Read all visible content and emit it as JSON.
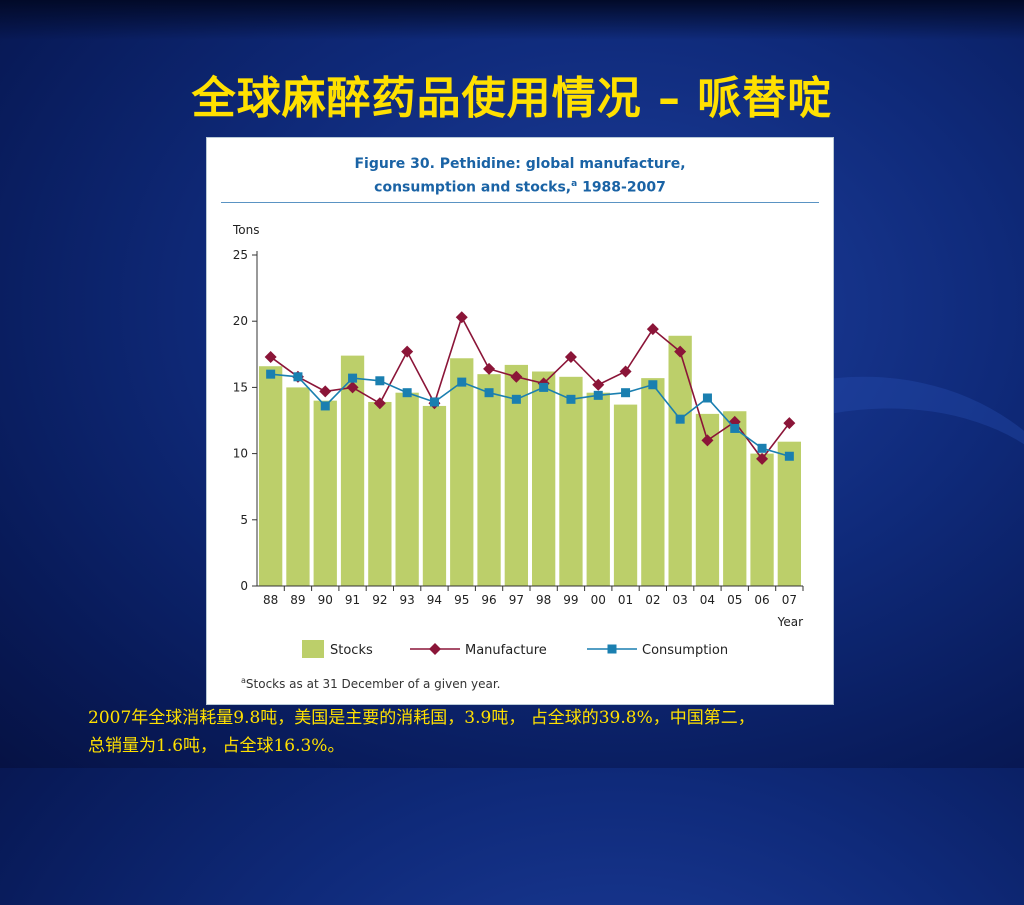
{
  "slide": {
    "title": "全球麻醉药品使用情况 – 哌替啶",
    "caption_line1": "2007年全球消耗量9.8吨，美国是主要的消耗国，3.9吨， 占全球的39.8%，中国第二，",
    "caption_line2": "总销量为1.6吨， 占全球16.3%。"
  },
  "colors": {
    "stocks": "#bccf6a",
    "manufacture": "#8b1538",
    "consumption": "#1a7fb0",
    "title_yellow": "#ffe000"
  },
  "chart_data": {
    "type": "bar",
    "title_line1": "Figure 30.   Pethidine: global manufacture,",
    "title_line2": "consumption and stocks,",
    "title_sup": "a",
    "title_tail": " 1988-2007",
    "ylabel": "Tons",
    "xlabel": "Year",
    "ylim": [
      0,
      25
    ],
    "yticks": [
      "0",
      "5",
      "10",
      "15",
      "20",
      "25"
    ],
    "categories": [
      "88",
      "89",
      "90",
      "91",
      "92",
      "93",
      "94",
      "95",
      "96",
      "97",
      "98",
      "99",
      "00",
      "01",
      "02",
      "03",
      "04",
      "05",
      "06",
      "07"
    ],
    "series": [
      {
        "name": "Stocks",
        "kind": "bar",
        "values": [
          16.6,
          15.0,
          14.0,
          17.4,
          13.9,
          14.6,
          13.6,
          17.2,
          16.0,
          16.7,
          16.2,
          15.8,
          14.6,
          13.7,
          15.7,
          18.9,
          13.0,
          13.2,
          10.0,
          10.9
        ]
      },
      {
        "name": "Manufacture",
        "kind": "line-diamond",
        "values": [
          17.3,
          15.8,
          14.7,
          15.0,
          13.8,
          17.7,
          13.8,
          20.3,
          16.4,
          15.8,
          15.3,
          17.3,
          15.2,
          16.2,
          19.4,
          17.7,
          11.0,
          12.4,
          9.6,
          12.3
        ]
      },
      {
        "name": "Consumption",
        "kind": "line-square",
        "values": [
          16.0,
          15.8,
          13.6,
          15.7,
          15.5,
          14.6,
          13.9,
          15.4,
          14.6,
          14.1,
          15.0,
          14.1,
          14.4,
          14.6,
          15.2,
          12.6,
          14.2,
          11.9,
          10.4,
          9.8
        ]
      }
    ],
    "legend": {
      "placement": "bottom",
      "stocks": "Stocks",
      "manufacture": "Manufacture",
      "consumption": "Consumption"
    },
    "footnote_sup": "a",
    "footnote": "Stocks as at 31 December of a given year."
  }
}
